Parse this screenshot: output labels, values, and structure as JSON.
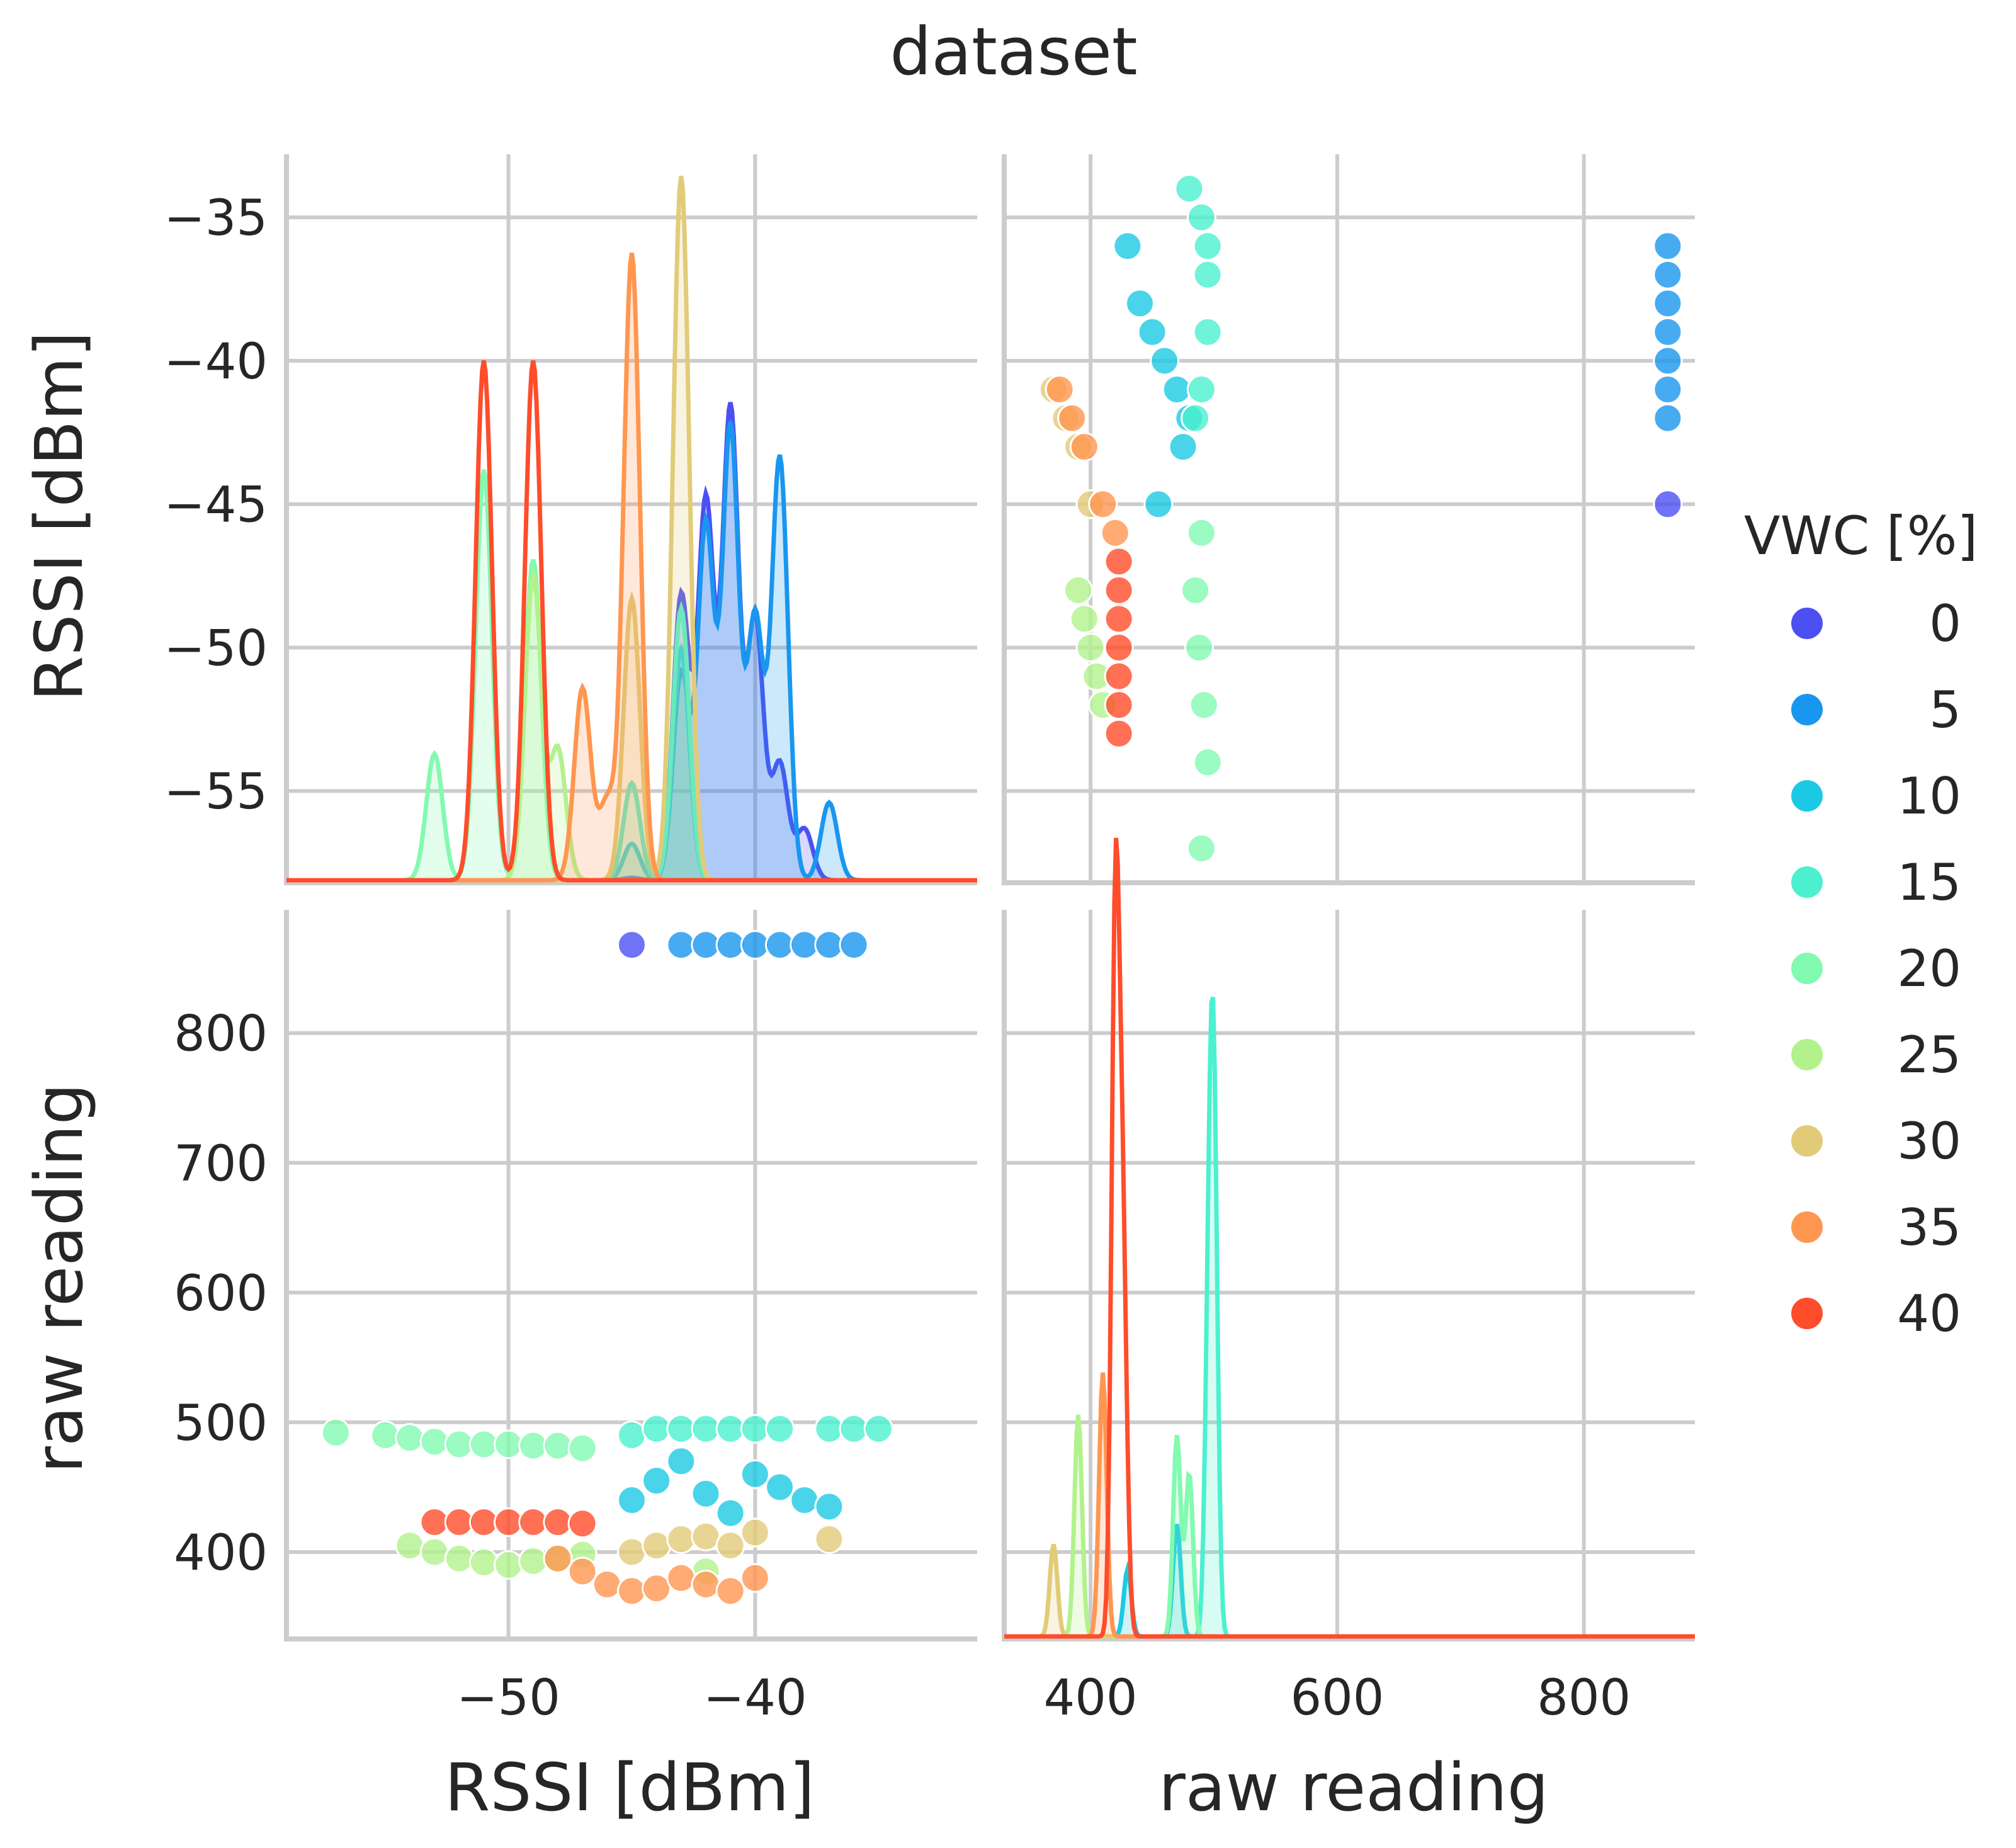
{
  "chart_data": {
    "type": "pairplot",
    "title": "dataset",
    "variables": [
      "RSSI [dBm]",
      "raw reading"
    ],
    "axes": {
      "rssi": {
        "label": "RSSI [dBm]",
        "range": [
          -59,
          -31
        ],
        "ticks": [
          -50,
          -40
        ],
        "tick_labels": [
          "−50",
          "−40"
        ],
        "y_range": [
          -58.2,
          -32.8
        ],
        "y_ticks": [
          -35,
          -40,
          -45,
          -50,
          -55
        ],
        "y_tick_labels": [
          "−35",
          "−40",
          "−45",
          "−50",
          "−55"
        ]
      },
      "raw": {
        "label": "raw reading",
        "range": [
          330,
          890
        ],
        "ticks": [
          400,
          600,
          800
        ],
        "tick_labels": [
          "400",
          "600",
          "800"
        ],
        "y_range": [
          333,
          895
        ],
        "y_ticks": [
          400,
          500,
          600,
          700,
          800
        ],
        "y_tick_labels": [
          "400",
          "500",
          "600",
          "700",
          "800"
        ]
      }
    },
    "legend": {
      "title": "VWC [%]",
      "position": "right",
      "entries": [
        {
          "label": "0",
          "color": "#4c50f3"
        },
        {
          "label": "5",
          "color": "#1996ef"
        },
        {
          "label": "10",
          "color": "#1cc9e4"
        },
        {
          "label": "15",
          "color": "#4bf0cf"
        },
        {
          "label": "20",
          "color": "#82fab0"
        },
        {
          "label": "25",
          "color": "#b2f28c"
        },
        {
          "label": "30",
          "color": "#e2cb78"
        },
        {
          "label": "35",
          "color": "#ff9650"
        },
        {
          "label": "40",
          "color": "#ff4c2a"
        }
      ]
    },
    "series": [
      {
        "name": "0",
        "rssi": [
          -45
        ],
        "raw": [
          868
        ]
      },
      {
        "name": "5",
        "rssi": [
          -43,
          -42,
          -41,
          -40,
          -39,
          -38,
          -37,
          -36
        ],
        "raw": [
          868,
          868,
          868,
          868,
          868,
          868,
          868,
          868
        ]
      },
      {
        "name": "10",
        "rssi": [
          -45,
          -44,
          -43,
          -42,
          -41,
          -40,
          -39,
          -38,
          -37
        ],
        "raw": [
          440,
          455,
          470,
          445,
          430,
          460,
          450,
          440,
          435
        ]
      },
      {
        "name": "15",
        "rssi": [
          -45,
          -44,
          -43,
          -42,
          -41,
          -40,
          -39,
          -37,
          -36,
          -35
        ],
        "raw": [
          490,
          495,
          495,
          495,
          495,
          495,
          495,
          495,
          495,
          495
        ]
      },
      {
        "name": "20",
        "rssi": [
          -57,
          -55,
          -54,
          -53,
          -52,
          -51,
          -50,
          -49,
          -48,
          -47
        ],
        "raw": [
          492,
          490,
          488,
          485,
          483,
          483,
          483,
          482,
          482,
          480
        ]
      },
      {
        "name": "25",
        "rssi": [
          -54,
          -53,
          -52,
          -51,
          -50,
          -49,
          -48,
          -47,
          -42
        ],
        "raw": [
          405,
          400,
          395,
          392,
          390,
          393,
          395,
          398,
          385
        ]
      },
      {
        "name": "30",
        "rssi": [
          -45,
          -44,
          -43,
          -42,
          -41,
          -40,
          -37
        ],
        "raw": [
          400,
          405,
          410,
          412,
          405,
          415,
          410
        ]
      },
      {
        "name": "35",
        "rssi": [
          -48,
          -47,
          -46,
          -45,
          -44,
          -43,
          -42,
          -41,
          -40
        ],
        "raw": [
          395,
          385,
          375,
          370,
          372,
          380,
          375,
          370,
          380
        ]
      },
      {
        "name": "40",
        "rssi": [
          -53,
          -52,
          -51,
          -50,
          -49,
          -48,
          -47
        ],
        "raw": [
          423,
          423,
          423,
          423,
          423,
          423,
          422
        ]
      }
    ],
    "rssi_vs_raw": [
      {
        "name": "0",
        "raw": [
          868
        ],
        "rssi": [
          -45
        ]
      },
      {
        "name": "5",
        "raw": [
          868,
          868,
          868,
          868,
          868,
          868,
          868
        ],
        "rssi": [
          -36,
          -37,
          -38,
          -39,
          -40,
          -41,
          -42
        ]
      },
      {
        "name": "10",
        "raw": [
          430,
          440,
          450,
          460,
          470,
          480,
          475,
          455
        ],
        "rssi": [
          -36,
          -38,
          -39,
          -40,
          -41,
          -42,
          -43,
          -45
        ]
      },
      {
        "name": "15",
        "raw": [
          480,
          490,
          495,
          495,
          495,
          490,
          485
        ],
        "rssi": [
          -34,
          -35,
          -36,
          -37,
          -39,
          -41,
          -42
        ]
      },
      {
        "name": "20",
        "raw": [
          490,
          485,
          488,
          492,
          495,
          490
        ],
        "rssi": [
          -46,
          -48,
          -50,
          -52,
          -54,
          -57
        ]
      },
      {
        "name": "25",
        "raw": [
          390,
          395,
          400,
          405,
          410
        ],
        "rssi": [
          -48,
          -49,
          -50,
          -51,
          -52
        ]
      },
      {
        "name": "30",
        "raw": [
          370,
          380,
          390,
          400
        ],
        "rssi": [
          -41,
          -42,
          -43,
          -45
        ]
      },
      {
        "name": "35",
        "raw": [
          375,
          385,
          395,
          410,
          420
        ],
        "rssi": [
          -41,
          -42,
          -43,
          -45,
          -46
        ]
      },
      {
        "name": "40",
        "raw": [
          423,
          423,
          423,
          423,
          423,
          423,
          423
        ],
        "rssi": [
          -47,
          -48,
          -49,
          -50,
          -51,
          -52,
          -53
        ]
      }
    ],
    "kde_rssi": [
      {
        "name": "0",
        "fill": true,
        "peaks": [
          [
            -45,
            0.1
          ],
          [
            -43,
            11.7
          ],
          [
            -42,
            15.6
          ],
          [
            -41,
            19.4
          ],
          [
            -40,
            10.8
          ],
          [
            -39,
            4.8
          ],
          [
            -38,
            2.1
          ]
        ]
      },
      {
        "name": "5",
        "fill": true,
        "peaks": [
          [
            -43,
            8.5
          ],
          [
            -42,
            14.6
          ],
          [
            -41,
            18.6
          ],
          [
            -40,
            10.8
          ],
          [
            -39,
            17.4
          ],
          [
            -37,
            3.2
          ]
        ]
      },
      {
        "name": "10",
        "fill": true,
        "peaks": [
          [
            -45,
            1.5
          ],
          [
            -43,
            9.5
          ]
        ]
      },
      {
        "name": "15",
        "fill": true,
        "peaks": [
          [
            -45,
            4.0
          ],
          [
            -43,
            11.2
          ]
        ]
      },
      {
        "name": "20",
        "fill": true,
        "peaks": [
          [
            -53,
            5.2
          ],
          [
            -51,
            16.9
          ],
          [
            -49,
            13.2
          ]
        ]
      },
      {
        "name": "25",
        "fill": true,
        "peaks": [
          [
            -49,
            12.5
          ],
          [
            -48,
            5.4
          ]
        ]
      },
      {
        "name": "30",
        "fill": true,
        "peaks": [
          [
            -45,
            11.6
          ],
          [
            -43,
            29.0
          ]
        ]
      },
      {
        "name": "35",
        "fill": true,
        "peaks": [
          [
            -47,
            7.9
          ],
          [
            -45,
            25.8
          ],
          [
            -46,
            3.2
          ]
        ]
      },
      {
        "name": "40",
        "fill": false,
        "peaks": [
          [
            -51,
            21.4
          ],
          [
            -49,
            21.4
          ]
        ]
      }
    ],
    "kde_raw": [
      {
        "name": "10",
        "fill": true,
        "peaks": [
          [
            430,
            7.0
          ],
          [
            470,
            11.7
          ]
        ]
      },
      {
        "name": "15",
        "fill": true,
        "peaks": [
          [
            496,
            31.3
          ],
          [
            500,
            50.5
          ]
        ]
      },
      {
        "name": "20",
        "fill": true,
        "peaks": [
          [
            470,
            20.9
          ],
          [
            480,
            17.0
          ]
        ]
      },
      {
        "name": "25",
        "fill": true,
        "peaks": [
          [
            390,
            23.1
          ]
        ]
      },
      {
        "name": "30",
        "fill": true,
        "peaks": [
          [
            370,
            9.6
          ]
        ]
      },
      {
        "name": "35",
        "fill": true,
        "peaks": [
          [
            410,
            27.5
          ]
        ]
      },
      {
        "name": "40",
        "fill": false,
        "peaks": [
          [
            420,
            72.0
          ],
          [
            425,
            33.0
          ],
          [
            428,
            14.0
          ]
        ]
      }
    ]
  }
}
